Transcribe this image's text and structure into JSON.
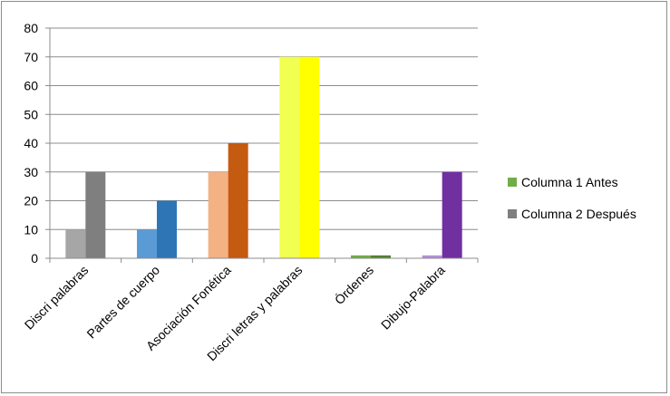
{
  "chart_data": {
    "type": "bar",
    "categories": [
      "Discri palabras",
      "Partes de cuerpo",
      "Asociación Fonética",
      "Discri letras y palabras",
      "Órdenes",
      "Dibujo-Palabra"
    ],
    "series": [
      {
        "name": "Columna 1 Antes",
        "values": [
          10,
          10,
          30,
          70,
          1,
          1
        ],
        "colors": [
          "#a6a6a6",
          "#5b9bd5",
          "#f4b183",
          "#f0ff50",
          "#70ad47",
          "#b68ed8"
        ],
        "legend_color": "#70ad47"
      },
      {
        "name": "Columna 2 Después",
        "values": [
          30,
          20,
          40,
          70,
          1,
          30
        ],
        "colors": [
          "#7f7f7f",
          "#2e75b6",
          "#c55a11",
          "#ffff00",
          "#548235",
          "#7030a0"
        ],
        "legend_color": "#7f7f7f"
      }
    ],
    "ylim": [
      0,
      80
    ],
    "yticks": [
      "0",
      "10",
      "20",
      "30",
      "40",
      "50",
      "60",
      "70",
      "80"
    ],
    "grid": true,
    "legend_position": "right",
    "gridline_color": "#8c8c8c",
    "axis_color": "#8c8c8c"
  }
}
